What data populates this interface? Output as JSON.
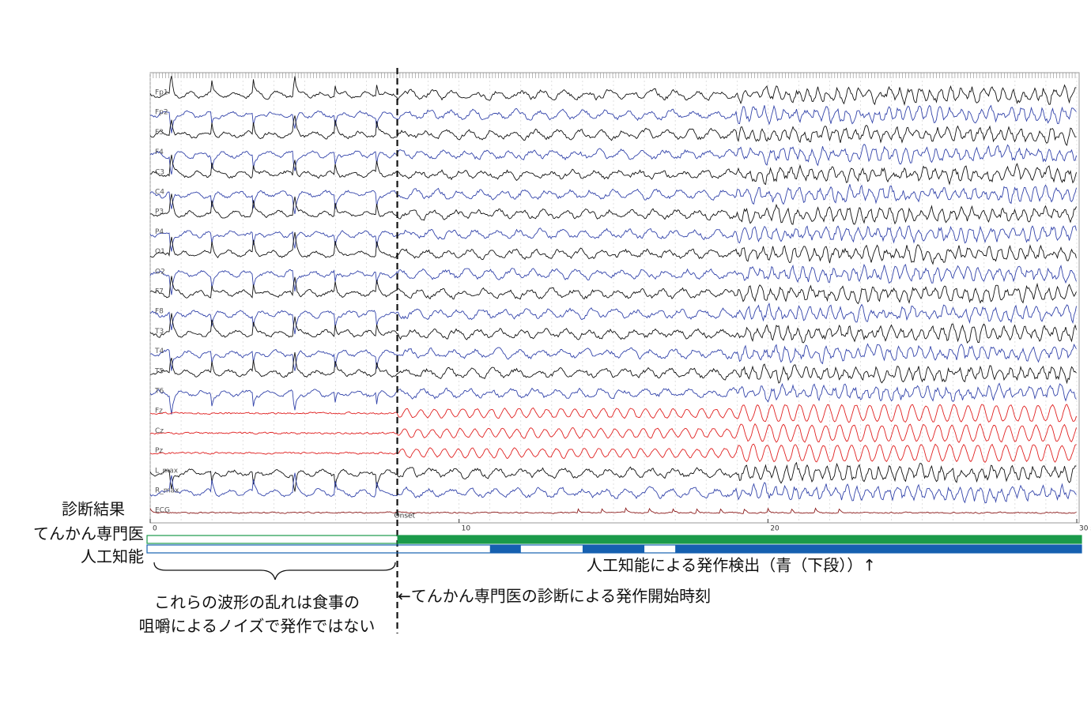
{
  "figure": {
    "channels": [
      {
        "label": "Fp1",
        "color": "#111111"
      },
      {
        "label": "Fp2",
        "color": "#3344aa"
      },
      {
        "label": "F3",
        "color": "#111111"
      },
      {
        "label": "F4",
        "color": "#3344aa"
      },
      {
        "label": "C3",
        "color": "#111111"
      },
      {
        "label": "C4",
        "color": "#3344aa"
      },
      {
        "label": "P3",
        "color": "#111111"
      },
      {
        "label": "P4",
        "color": "#3344aa"
      },
      {
        "label": "O1",
        "color": "#111111"
      },
      {
        "label": "O2",
        "color": "#3344aa"
      },
      {
        "label": "F7",
        "color": "#111111"
      },
      {
        "label": "F8",
        "color": "#3344aa"
      },
      {
        "label": "T3",
        "color": "#111111"
      },
      {
        "label": "T4",
        "color": "#3344aa"
      },
      {
        "label": "T5",
        "color": "#111111"
      },
      {
        "label": "T6",
        "color": "#3344aa"
      },
      {
        "label": "Fz",
        "color": "#e02020"
      },
      {
        "label": "Cz",
        "color": "#e02020"
      },
      {
        "label": "Pz",
        "color": "#e02020"
      },
      {
        "label": "L_max",
        "color": "#111111"
      },
      {
        "label": "R_max",
        "color": "#3344aa"
      },
      {
        "label": "ECG",
        "color": "#8b1a1a"
      }
    ],
    "xlim": [
      0,
      30
    ],
    "xticks": [
      0,
      10,
      20,
      {
        "value": 30,
        "label": "30 s"
      }
    ],
    "onset": {
      "value": 8,
      "label": "Onset"
    },
    "row_title": "診断結果",
    "expert": {
      "label": "てんかん専門医",
      "color": "#1a9a4a",
      "segments": [
        [
          8,
          30
        ]
      ]
    },
    "ai": {
      "label": "人工知能",
      "color": "#1560b0",
      "segments": [
        [
          11,
          12
        ],
        [
          14,
          16
        ],
        [
          17,
          30
        ]
      ]
    },
    "ai_note": "人工知能による発作検出（青（下段））↑",
    "onset_note": "←てんかん専門医の診断による発作開始時刻",
    "noise_note": [
      "これらの波形の乱れは食事の",
      "咀嚼によるノイズで発作ではない"
    ]
  }
}
